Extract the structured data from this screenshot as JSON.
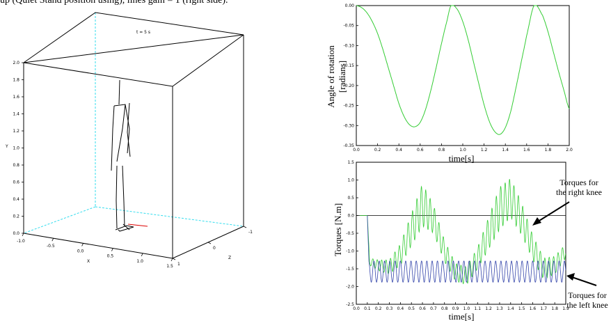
{
  "caption": "up (Quiet Stand position using), lines gain = 1 (right side).",
  "chart_data": [
    {
      "type": "3d-scene",
      "title": "t = 5 s",
      "xlabel": "X",
      "ylabel": "Y",
      "zlabel": "Z",
      "xticks": [
        "-1.0",
        "-0.5",
        "0.0",
        "0.5",
        "1.0",
        "1.5"
      ],
      "yticks": [
        "0.0",
        "0.2",
        "0.4",
        "0.6",
        "0.8",
        "1.0",
        "1.2",
        "1.4",
        "1.6",
        "1.8",
        "2.0"
      ],
      "zticks": [
        "-1",
        "0",
        "1"
      ],
      "xlim": [
        -1.0,
        1.5
      ],
      "ylim": [
        0.0,
        2.0
      ],
      "zlim": [
        -1,
        1
      ]
    },
    {
      "type": "line",
      "title": "",
      "xlabel": "time[s]",
      "ylabel": "Angle of rotation [radians]",
      "ylabel_lines": [
        "Angle of rotation",
        "[radians]"
      ],
      "xlim": [
        0,
        2.0
      ],
      "ylim": [
        -0.35,
        0.0
      ],
      "xticks": [
        "0.0",
        "0.2",
        "0.4",
        "0.6",
        "0.8",
        "1.0",
        "1.2",
        "1.4",
        "1.6",
        "1.8",
        "2.0"
      ],
      "yticks": [
        "0.00",
        "-0.05",
        "-0.10",
        "-0.15",
        "-0.20",
        "-0.25",
        "-0.30",
        "-0.35"
      ],
      "series": [
        {
          "color": "#33cc33",
          "x": [
            0,
            0.05,
            0.1,
            0.15,
            0.2,
            0.25,
            0.3,
            0.35,
            0.4,
            0.45,
            0.5,
            0.55,
            0.6,
            0.65,
            0.7,
            0.75,
            0.8,
            0.85,
            0.89,
            0.95,
            1.0,
            1.05,
            1.1,
            1.15,
            1.2,
            1.25,
            1.3,
            1.35,
            1.4,
            1.45,
            1.5,
            1.55,
            1.6,
            1.67,
            1.75,
            1.8,
            1.85,
            1.9,
            1.95,
            2.0
          ],
          "values": [
            0.0,
            -0.005,
            -0.018,
            -0.04,
            -0.07,
            -0.11,
            -0.155,
            -0.2,
            -0.245,
            -0.278,
            -0.298,
            -0.303,
            -0.292,
            -0.26,
            -0.212,
            -0.155,
            -0.095,
            -0.04,
            0.0,
            -0.01,
            -0.04,
            -0.085,
            -0.14,
            -0.195,
            -0.248,
            -0.29,
            -0.315,
            -0.322,
            -0.305,
            -0.265,
            -0.205,
            -0.14,
            -0.075,
            0.0,
            -0.025,
            -0.065,
            -0.115,
            -0.165,
            -0.212,
            -0.258
          ]
        }
      ]
    },
    {
      "type": "line",
      "title": "",
      "xlabel": "time[s]",
      "ylabel": "Torques [N.m]",
      "xlim": [
        0,
        1.9
      ],
      "ylim": [
        -2.5,
        1.5
      ],
      "xticks": [
        "0.0",
        "0.1",
        "0.2",
        "0.3",
        "0.4",
        "0.5",
        "0.6",
        "0.7",
        "0.8",
        "0.9",
        "1.0",
        "1.1",
        "1.2",
        "1.3",
        "1.4",
        "1.5",
        "1.6",
        "1.7",
        "1.8",
        "1.9"
      ],
      "yticks": [
        "1.5",
        "1.0",
        "0.5",
        "0.0",
        "-0.5",
        "-1.0",
        "-1.5",
        "-2.0",
        "-2.5"
      ],
      "annotations": [
        {
          "text_lines": [
            "Torques for",
            "the right knee"
          ]
        },
        {
          "text_lines": [
            "Torques for",
            "the left knee"
          ]
        }
      ],
      "series": [
        {
          "name": "right knee",
          "color": "#33cc33",
          "oscillation": "high-frequency with envelope",
          "x_start": 0.1,
          "x_end": 1.9,
          "envelope_x": [
            0.1,
            0.12,
            0.2,
            0.3,
            0.4,
            0.5,
            0.6,
            0.7,
            0.8,
            0.9,
            1.0,
            1.1,
            1.2,
            1.3,
            1.4,
            1.5,
            1.6,
            1.7,
            1.8,
            1.9
          ],
          "envelope_center": [
            0.0,
            -1.3,
            -1.4,
            -1.45,
            -1.1,
            -0.4,
            0.3,
            -0.1,
            -1.0,
            -1.6,
            -1.7,
            -1.2,
            -0.5,
            0.2,
            0.5,
            -0.1,
            -0.9,
            -1.5,
            -1.4,
            -1.0
          ],
          "envelope_amplitude": [
            0.0,
            0.1,
            0.15,
            0.2,
            0.3,
            0.45,
            0.6,
            0.4,
            0.3,
            0.25,
            0.25,
            0.3,
            0.45,
            0.6,
            0.55,
            0.45,
            0.35,
            0.3,
            0.25,
            0.2
          ]
        },
        {
          "name": "left knee",
          "color": "#3344aa",
          "oscillation": "steady",
          "x_start": 0.1,
          "x_end": 1.9,
          "mean": -1.58,
          "amplitude": 0.3,
          "period": 0.048
        }
      ]
    }
  ]
}
